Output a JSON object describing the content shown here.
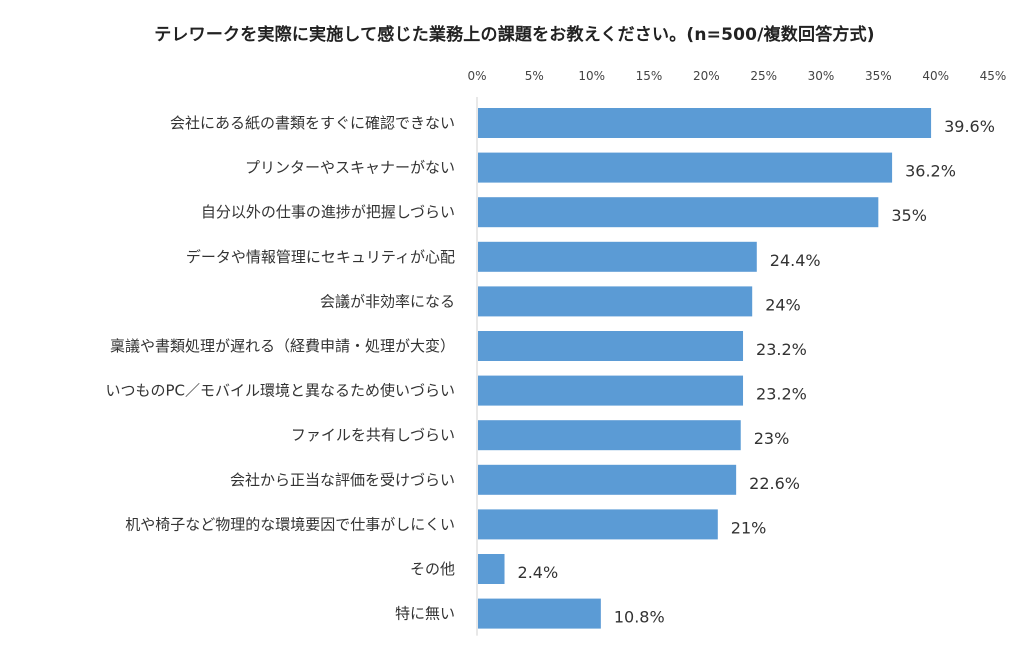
{
  "chart_data": {
    "type": "bar",
    "orientation": "horizontal",
    "title": "テレワークを実際に実施して感じた業務上の課題をお教えください。(n=500/複数回答方式)",
    "categories": [
      "会社にある紙の書類をすぐに確認できない",
      "プリンターやスキャナーがない",
      "自分以外の仕事の進捗が把握しづらい",
      "データや情報管理にセキュリティが心配",
      "会議が非効率になる",
      "稟議や書類処理が遅れる（経費申請・処理が大変）",
      "いつものPC／モバイル環境と異なるため使いづらい",
      "ファイルを共有しづらい",
      "会社から正当な評価を受けづらい",
      "机や椅子など物理的な環境要因で仕事がしにくい",
      "その他",
      "特に無い"
    ],
    "values": [
      39.6,
      36.2,
      35,
      24.4,
      24,
      23.2,
      23.2,
      23,
      22.6,
      21,
      2.4,
      10.8
    ],
    "value_labels": [
      "39.6%",
      "36.2%",
      "35%",
      "24.4%",
      "24%",
      "23.2%",
      "23.2%",
      "23%",
      "22.6%",
      "21%",
      "2.4%",
      "10.8%"
    ],
    "xlim": [
      0,
      45
    ],
    "x_ticks": [
      "0%",
      "5%",
      "10%",
      "15%",
      "20%",
      "25%",
      "30%",
      "35%",
      "40%",
      "45%"
    ],
    "x_tick_values": [
      0,
      5,
      10,
      15,
      20,
      25,
      30,
      35,
      40,
      45
    ],
    "axis_position": "top",
    "grid": false,
    "bar_color": "#5b9bd5"
  }
}
